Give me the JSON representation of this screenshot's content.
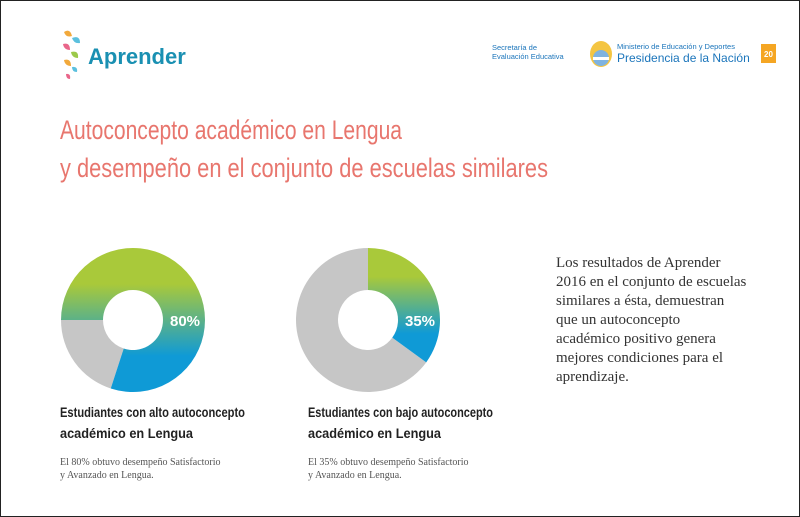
{
  "header": {
    "logo": "Aprender",
    "secretaria": [
      "Secretaría de",
      "Evaluación Educativa"
    ],
    "ministerio": "Ministerio de Educación y Deportes",
    "presidencia": "Presidencia de la Nación",
    "page": "20"
  },
  "title": [
    "Autoconcepto académico en Lengua",
    "y desempeño en el conjunto de escuelas similares"
  ],
  "charts": [
    {
      "type": "pie",
      "values": [
        80
      ],
      "value_labels": [
        "80%"
      ],
      "caption": [
        "Estudiantes con alto autoconcepto",
        "académico en Lengua"
      ],
      "note": [
        "El 80% obtuvo desempeño Satisfactorio",
        "y Avanzado en Lengua."
      ]
    },
    {
      "type": "pie",
      "values": [
        35
      ],
      "value_labels": [
        "35%"
      ],
      "caption": [
        "Estudiantes con bajo autoconcepto",
        "académico en Lengua"
      ],
      "note": [
        "El 35% obtuvo desempeño Satisfactorio",
        "y Avanzado en Lengua."
      ]
    }
  ],
  "paragraph": [
    "Los resultados de Aprender",
    "2016 en el conjunto de escuelas",
    "similares a ésta, demuestran",
    "que un autoconcepto",
    "académico positivo genera",
    "mejores condiciones para el",
    "aprendizaje."
  ]
}
